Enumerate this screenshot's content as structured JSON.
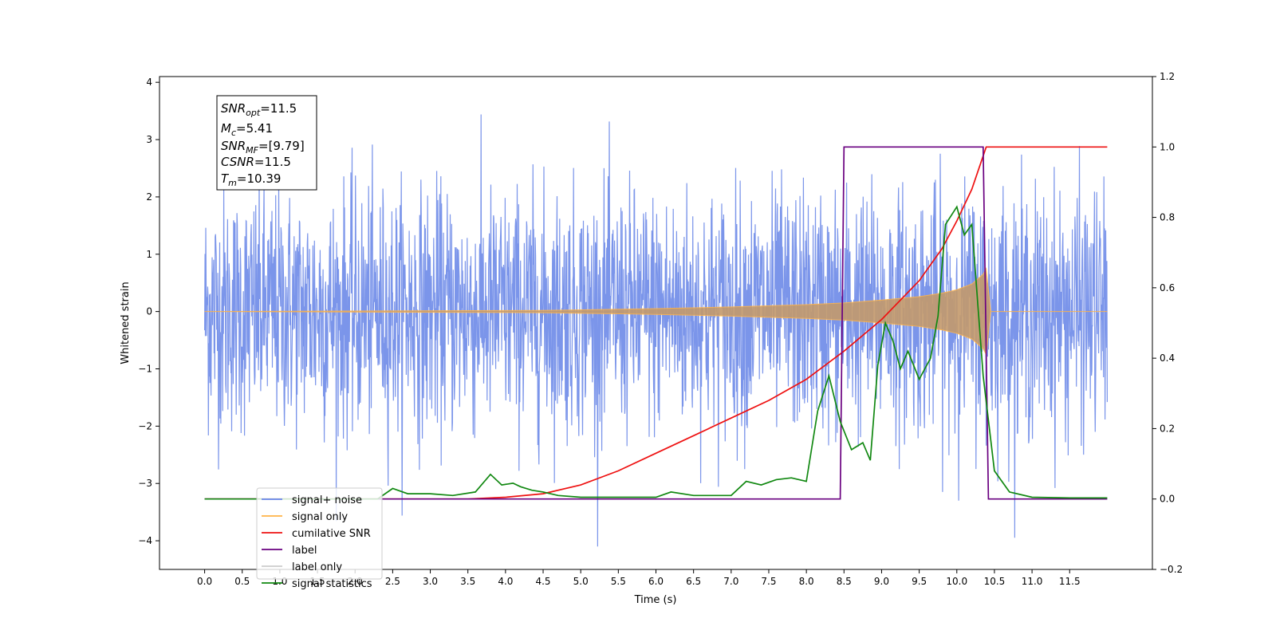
{
  "chart_data": {
    "type": "line",
    "xlabel": "Time (s)",
    "ylabel_left": "Whitened strain",
    "ylabel_right": "",
    "xlim": [
      -0.6,
      12.6
    ],
    "ylim_left": [
      -4.5,
      4.1
    ],
    "ylim_right": [
      -0.2,
      1.2
    ],
    "x_ticks": [
      "0.0",
      "0.5",
      "1.0",
      "1.5",
      "2.0",
      "2.5",
      "3.0",
      "3.5",
      "4.0",
      "4.5",
      "5.0",
      "5.5",
      "6.0",
      "6.5",
      "7.0",
      "7.5",
      "8.0",
      "8.5",
      "9.0",
      "9.5",
      "10.0",
      "10.5",
      "11.0",
      "11.5"
    ],
    "y_ticks_left": [
      "-4",
      "-3",
      "-2",
      "-1",
      "0",
      "1",
      "2",
      "3",
      "4"
    ],
    "y_ticks_right": [
      "-0.2",
      "0.0",
      "0.2",
      "0.4",
      "0.6",
      "0.8",
      "1.0",
      "1.2"
    ],
    "grid": false,
    "legend_position": "bottom-left",
    "series": [
      {
        "name": "signal+ noise",
        "color": "#6482e6",
        "axis": "left",
        "description_values": {
          "x_start": 0.0,
          "x_end": 12.0,
          "noise_band": [
            -2.0,
            2.0
          ],
          "max": 3.6,
          "min": -4.1
        }
      },
      {
        "name": "signal only",
        "color": "#ffb347",
        "axis": "left",
        "x": [
          0.0,
          4.5,
          6.0,
          7.0,
          8.0,
          8.5,
          9.0,
          9.5,
          9.8,
          10.0,
          10.2,
          10.35,
          10.39,
          10.45,
          12.0
        ],
        "envelope": [
          0.0,
          0.02,
          0.05,
          0.08,
          0.12,
          0.15,
          0.2,
          0.26,
          0.32,
          0.38,
          0.48,
          0.65,
          0.75,
          0.0,
          0.0
        ]
      },
      {
        "name": "cumilative SNR",
        "color": "#ee1111",
        "axis": "right",
        "x": [
          0.0,
          3.5,
          4.0,
          4.5,
          5.0,
          5.5,
          6.0,
          6.5,
          7.0,
          7.5,
          8.0,
          8.5,
          9.0,
          9.5,
          9.8,
          10.0,
          10.2,
          10.39,
          10.4,
          12.0
        ],
        "y": [
          0.0,
          0.0,
          0.005,
          0.015,
          0.04,
          0.08,
          0.13,
          0.18,
          0.23,
          0.28,
          0.34,
          0.42,
          0.51,
          0.62,
          0.71,
          0.79,
          0.88,
          1.0,
          1.0,
          1.0
        ]
      },
      {
        "name": "label",
        "color": "#6a0080",
        "axis": "right",
        "x": [
          0.0,
          8.45,
          8.5,
          10.35,
          10.42,
          12.0
        ],
        "y": [
          0.0,
          0.0,
          1.0,
          1.0,
          0.0,
          0.0
        ]
      },
      {
        "name": "signal statistics",
        "color": "#118811",
        "axis": "right",
        "x": [
          0.0,
          2.3,
          2.5,
          2.7,
          3.0,
          3.3,
          3.6,
          3.8,
          3.95,
          4.1,
          4.2,
          4.35,
          4.5,
          4.7,
          5.0,
          5.5,
          6.0,
          6.2,
          6.5,
          7.0,
          7.2,
          7.4,
          7.6,
          7.8,
          8.0,
          8.15,
          8.3,
          8.45,
          8.6,
          8.75,
          8.85,
          8.95,
          9.05,
          9.15,
          9.25,
          9.35,
          9.5,
          9.65,
          9.75,
          9.85,
          10.0,
          10.1,
          10.2,
          10.35,
          10.5,
          10.7,
          11.0,
          11.5,
          12.0
        ],
        "y": [
          0.0,
          0.0,
          0.03,
          0.015,
          0.015,
          0.01,
          0.02,
          0.07,
          0.04,
          0.045,
          0.035,
          0.025,
          0.02,
          0.01,
          0.005,
          0.005,
          0.005,
          0.02,
          0.01,
          0.01,
          0.05,
          0.04,
          0.055,
          0.06,
          0.05,
          0.25,
          0.35,
          0.22,
          0.14,
          0.16,
          0.11,
          0.38,
          0.5,
          0.45,
          0.37,
          0.42,
          0.34,
          0.4,
          0.52,
          0.78,
          0.83,
          0.75,
          0.78,
          0.35,
          0.08,
          0.02,
          0.005,
          0.003,
          0.003
        ]
      }
    ],
    "annotations": {
      "snr_opt_label": "SNR",
      "snr_opt_sub": "opt",
      "snr_opt_value": "=11.5",
      "mc_label": "M",
      "mc_sub": "c",
      "mc_value": "=5.41",
      "snr_mf_label": "SNR",
      "snr_mf_sub": "MF",
      "snr_mf_value": "=[9.79]",
      "csnr_label": "CSNR",
      "csnr_value": "=11.5",
      "tm_label": "T",
      "tm_sub": "m",
      "tm_value": "=10.39"
    },
    "legend": [
      {
        "label": "signal+ noise",
        "color": "#6482e6"
      },
      {
        "label": "signal only",
        "color": "#ffb347"
      },
      {
        "label": "cumilative SNR",
        "color": "#ee1111"
      },
      {
        "label": "label",
        "color": "#6a0080"
      },
      {
        "label": "label only",
        "color": "#cccccc"
      },
      {
        "label": "signal statistics",
        "color": "#118811"
      }
    ]
  }
}
